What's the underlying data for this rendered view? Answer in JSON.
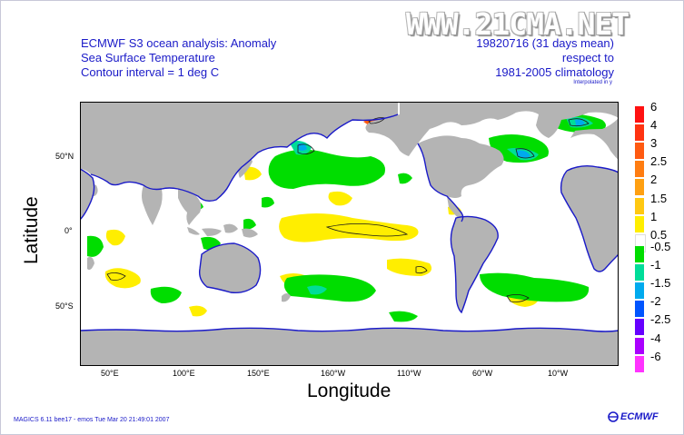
{
  "watermark": "WWW.21CMA.NET",
  "header": {
    "title_line1": "ECMWF S3 ocean analysis: Anomaly",
    "title_line2": "Sea Surface Temperature",
    "title_line3": "Contour interval = 1 deg C",
    "date": "19820716 (31 days mean)",
    "ref1": "respect to",
    "ref2": "1981-2005 climatology",
    "interp": "Interpolated in y"
  },
  "axes": {
    "x_title": "Longitude",
    "y_title": "Latitude",
    "x_ticks": [
      "50°E",
      "100°E",
      "150°E",
      "160°W",
      "110°W",
      "60°W",
      "10°W"
    ],
    "y_ticks": [
      "50°N",
      "0°",
      "50°S"
    ]
  },
  "legend": {
    "items": [
      {
        "label": "6",
        "color": "#ff1111"
      },
      {
        "label": "4",
        "color": "#ff3311"
      },
      {
        "label": "3",
        "color": "#ff5a11"
      },
      {
        "label": "2.5",
        "color": "#ff7d11"
      },
      {
        "label": "2",
        "color": "#ffa011"
      },
      {
        "label": "1.5",
        "color": "#ffc811"
      },
      {
        "label": "1",
        "color": "#ffee00"
      },
      {
        "label": "0.5",
        "color": "#ffffff"
      },
      {
        "label": "-0.5",
        "color": "#00dd00"
      },
      {
        "label": "-1",
        "color": "#00dd99"
      },
      {
        "label": "-1.5",
        "color": "#00aaee"
      },
      {
        "label": "-2",
        "color": "#0055ff"
      },
      {
        "label": "-2.5",
        "color": "#6600ff"
      },
      {
        "label": "-4",
        "color": "#aa00ff"
      },
      {
        "label": "-6",
        "color": "#ff33ff"
      }
    ]
  },
  "colors": {
    "land": "#b4b4b4",
    "coast": "#1a1ac8",
    "ocean": "#ffffff",
    "warm": "#ffee00",
    "cool": "#00dd00",
    "colder": "#00dd99",
    "cold": "#00aaee",
    "coldest": "#0055ff",
    "hot": "#ff5a11"
  },
  "footer": "MAGICS 6.11 bee17 - emos Tue Mar 20 21:49:01 2007",
  "logo": "ECMWF"
}
